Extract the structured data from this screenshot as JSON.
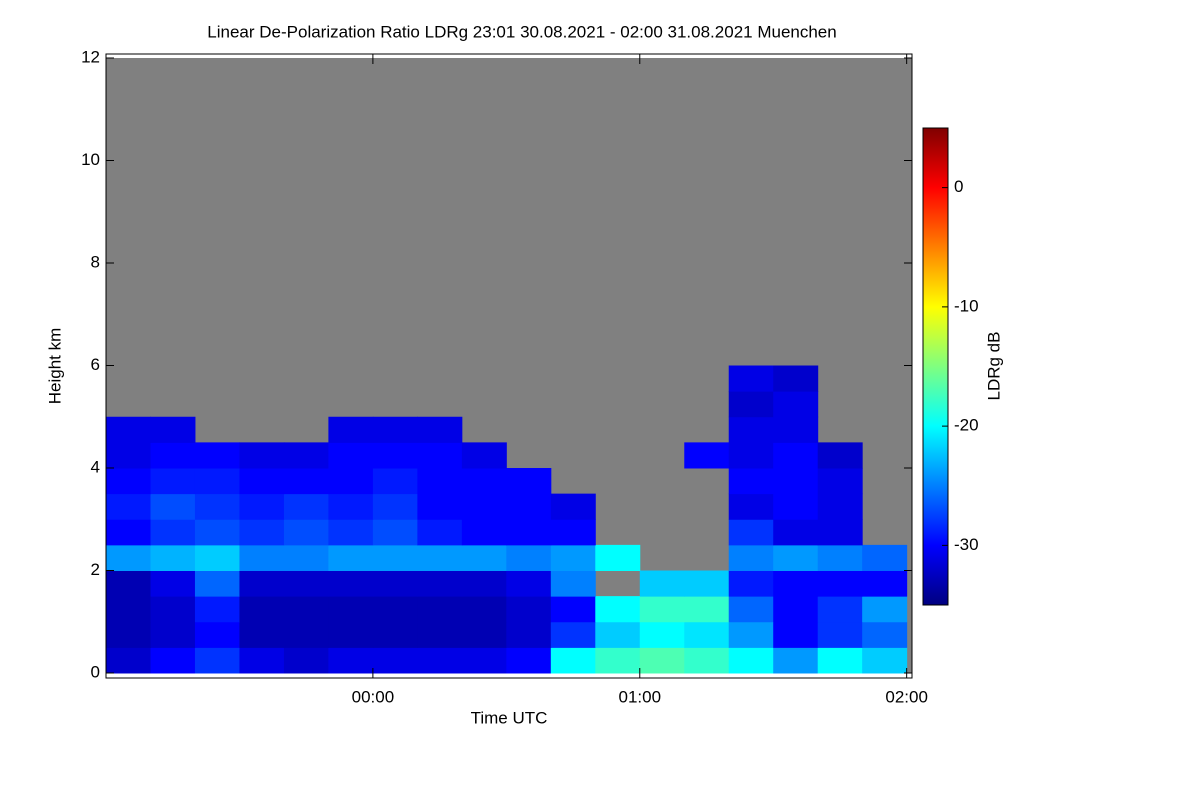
{
  "chart_data": {
    "type": "heatmap",
    "title": "Linear De-Polarization Ratio LDRg   23:01 30.08.2021 - 02:00 31.08.2021 Muenchen",
    "x_label": "Time UTC",
    "y_label": "Height km",
    "colorbar_label": "LDRg dB",
    "xlim": [
      23.0,
      26.02
    ],
    "xticks": [
      {
        "value": 24,
        "label": "00:00"
      },
      {
        "value": 25,
        "label": "01:00"
      },
      {
        "value": 26,
        "label": "02:00"
      }
    ],
    "ylim": [
      0,
      12
    ],
    "yticks": [
      0,
      2,
      4,
      6,
      8,
      10,
      12
    ],
    "zlim": [
      -35,
      5
    ],
    "zticks": [
      -30,
      -20,
      -10,
      0
    ],
    "colormap": [
      "#000080",
      "#0000ff",
      "#00ffff",
      "#ffff00",
      "#ff0000",
      "#800000"
    ],
    "nan_color": "#808080",
    "xbins": [
      23,
      23.1667,
      23.3333,
      23.5,
      23.6667,
      23.8333,
      24,
      24.1667,
      24.3333,
      24.5,
      24.6667,
      24.8333,
      25,
      25.1667,
      25.3333,
      25.5,
      25.6667,
      25.8333,
      26
    ],
    "ybins": [
      0,
      0.5,
      1,
      1.5,
      2,
      2.5,
      3,
      3.5,
      4,
      4.5,
      5,
      5.5,
      6
    ],
    "z": [
      [
        -32,
        -30,
        -28,
        -31,
        -32,
        -31,
        -31,
        -31,
        -31,
        -30,
        -20,
        -18,
        -17,
        -18,
        -20,
        -24,
        -20,
        -22
      ],
      [
        -33,
        -32,
        -30,
        -33,
        -33,
        -33,
        -33,
        -33,
        -33,
        -32,
        -28,
        -22,
        -20,
        -21,
        -24,
        -30,
        -28,
        -26
      ],
      [
        -33,
        -32,
        -29,
        -33,
        -33,
        -33,
        -33,
        -33,
        -33,
        -32,
        -30,
        -20,
        -18,
        -18,
        -26,
        -30,
        -28,
        -24
      ],
      [
        -33,
        -31,
        -26,
        -32,
        -32,
        -32,
        -32,
        -32,
        -32,
        -31,
        -25,
        null,
        -22,
        -22,
        -29,
        -30,
        -30,
        -30
      ],
      [
        -24,
        -23,
        -22,
        -25,
        -25,
        -24,
        -24,
        -24,
        -24,
        -25,
        -24,
        -20,
        null,
        null,
        -25,
        -24,
        -25,
        -26
      ],
      [
        -30,
        -28,
        -27,
        -28,
        -27,
        -28,
        -27,
        -29,
        -30,
        -30,
        -30,
        null,
        null,
        null,
        -28,
        -31,
        -31,
        null
      ],
      [
        -29,
        -27,
        -28,
        -29,
        -28,
        -29,
        -28,
        -30,
        -30,
        -30,
        -31,
        null,
        null,
        null,
        -31,
        -30,
        -31,
        null
      ],
      [
        -30,
        -29,
        -29,
        -30,
        -30,
        -30,
        -29,
        -30,
        -30,
        -30,
        null,
        null,
        null,
        null,
        -30,
        -30,
        -31,
        null
      ],
      [
        -31,
        -30,
        -30,
        -31,
        -31,
        -30,
        -30,
        -30,
        -31,
        null,
        null,
        null,
        null,
        -30,
        -31,
        -30,
        -32,
        null
      ],
      [
        -31,
        -31,
        null,
        null,
        null,
        -31,
        -31,
        -31,
        null,
        null,
        null,
        null,
        null,
        null,
        -31,
        -31,
        null,
        null
      ],
      [
        null,
        null,
        null,
        null,
        null,
        null,
        null,
        null,
        null,
        null,
        null,
        null,
        null,
        null,
        -32,
        -31,
        null,
        null
      ],
      [
        null,
        null,
        null,
        null,
        null,
        null,
        null,
        null,
        null,
        null,
        null,
        null,
        null,
        null,
        -31,
        -32,
        null,
        null
      ]
    ]
  }
}
